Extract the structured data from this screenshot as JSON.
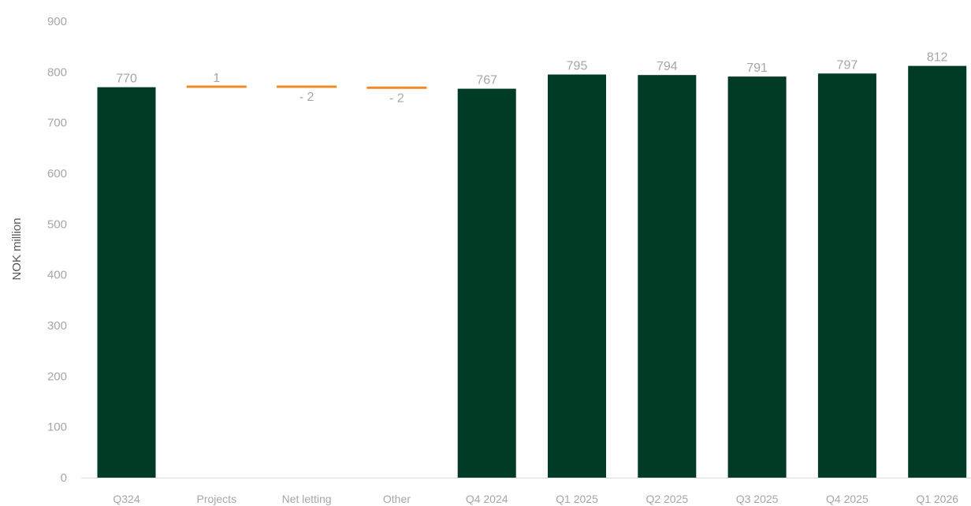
{
  "chart_data": {
    "type": "bar",
    "subtype": "waterfall",
    "categories": [
      "Q324",
      "Projects",
      "Net letting",
      "Other",
      "Q4 2024",
      "Q1 2025",
      "Q2 2025",
      "Q3 2025",
      "Q4 2025",
      "Q1 2026"
    ],
    "values": [
      770,
      1,
      -2,
      -2,
      767,
      795,
      794,
      791,
      797,
      812
    ],
    "kinds": [
      "total",
      "delta",
      "delta",
      "delta",
      "total",
      "total",
      "total",
      "total",
      "total",
      "total"
    ],
    "data_labels": [
      "770",
      "1",
      "- 2",
      "- 2",
      "767",
      "795",
      "794",
      "791",
      "797",
      "812"
    ],
    "ylabel": "NOK million",
    "ylim": [
      0,
      900
    ],
    "yticks": [
      0,
      100,
      200,
      300,
      400,
      500,
      600,
      700,
      800,
      900
    ],
    "grid": false,
    "legend": "none"
  },
  "colors": {
    "total_bar": "#003b26",
    "delta_bar": "#f08a24",
    "axis_line": "#d9d9d9",
    "label_text": "#a6a6a6",
    "title_text": "#595959"
  }
}
